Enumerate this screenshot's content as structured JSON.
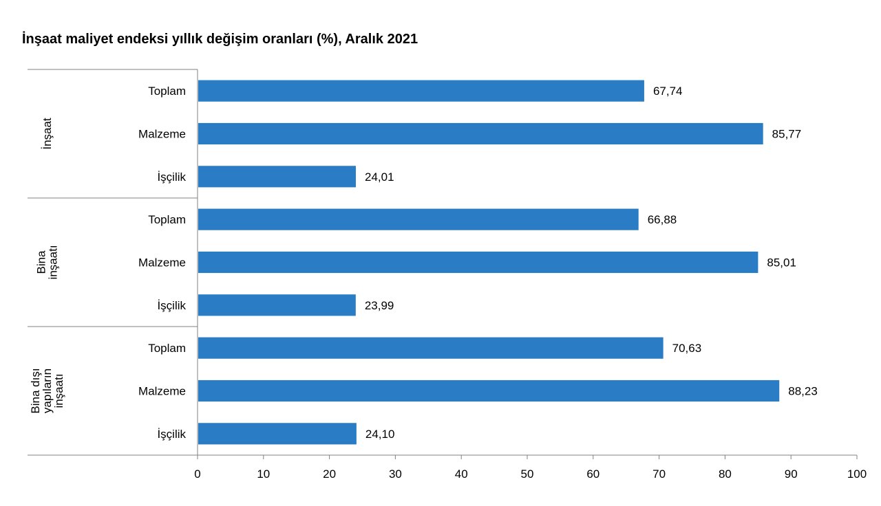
{
  "chart_data": {
    "type": "bar",
    "orientation": "horizontal",
    "title": "İnşaat maliyet endeksi yıllık değişim oranları (%), Aralık 2021",
    "xlabel": "",
    "ylabel": "",
    "xlim": [
      0,
      100
    ],
    "x_ticks": [
      "0",
      "10",
      "20",
      "30",
      "40",
      "50",
      "60",
      "70",
      "80",
      "90",
      "100"
    ],
    "grid": false,
    "legend": "none",
    "bar_color": "#2a7cc4",
    "groups": [
      {
        "label_lines": [
          "İnşaat"
        ],
        "bars": [
          {
            "category": "Toplam",
            "value": 67.74,
            "label": "67,74"
          },
          {
            "category": "Malzeme",
            "value": 85.77,
            "label": "85,77"
          },
          {
            "category": "İşçilik",
            "value": 24.01,
            "label": "24,01"
          }
        ]
      },
      {
        "label_lines": [
          "Bina",
          "inşaatı"
        ],
        "bars": [
          {
            "category": "Toplam",
            "value": 66.88,
            "label": "66,88"
          },
          {
            "category": "Malzeme",
            "value": 85.01,
            "label": "85,01"
          },
          {
            "category": "İşçilik",
            "value": 23.99,
            "label": "23,99"
          }
        ]
      },
      {
        "label_lines": [
          "Bina dışı",
          "yapıların",
          "inşaatı"
        ],
        "bars": [
          {
            "category": "Toplam",
            "value": 70.63,
            "label": "70,63"
          },
          {
            "category": "Malzeme",
            "value": 88.23,
            "label": "88,23"
          },
          {
            "category": "İşçilik",
            "value": 24.1,
            "label": "24,10"
          }
        ]
      }
    ]
  }
}
